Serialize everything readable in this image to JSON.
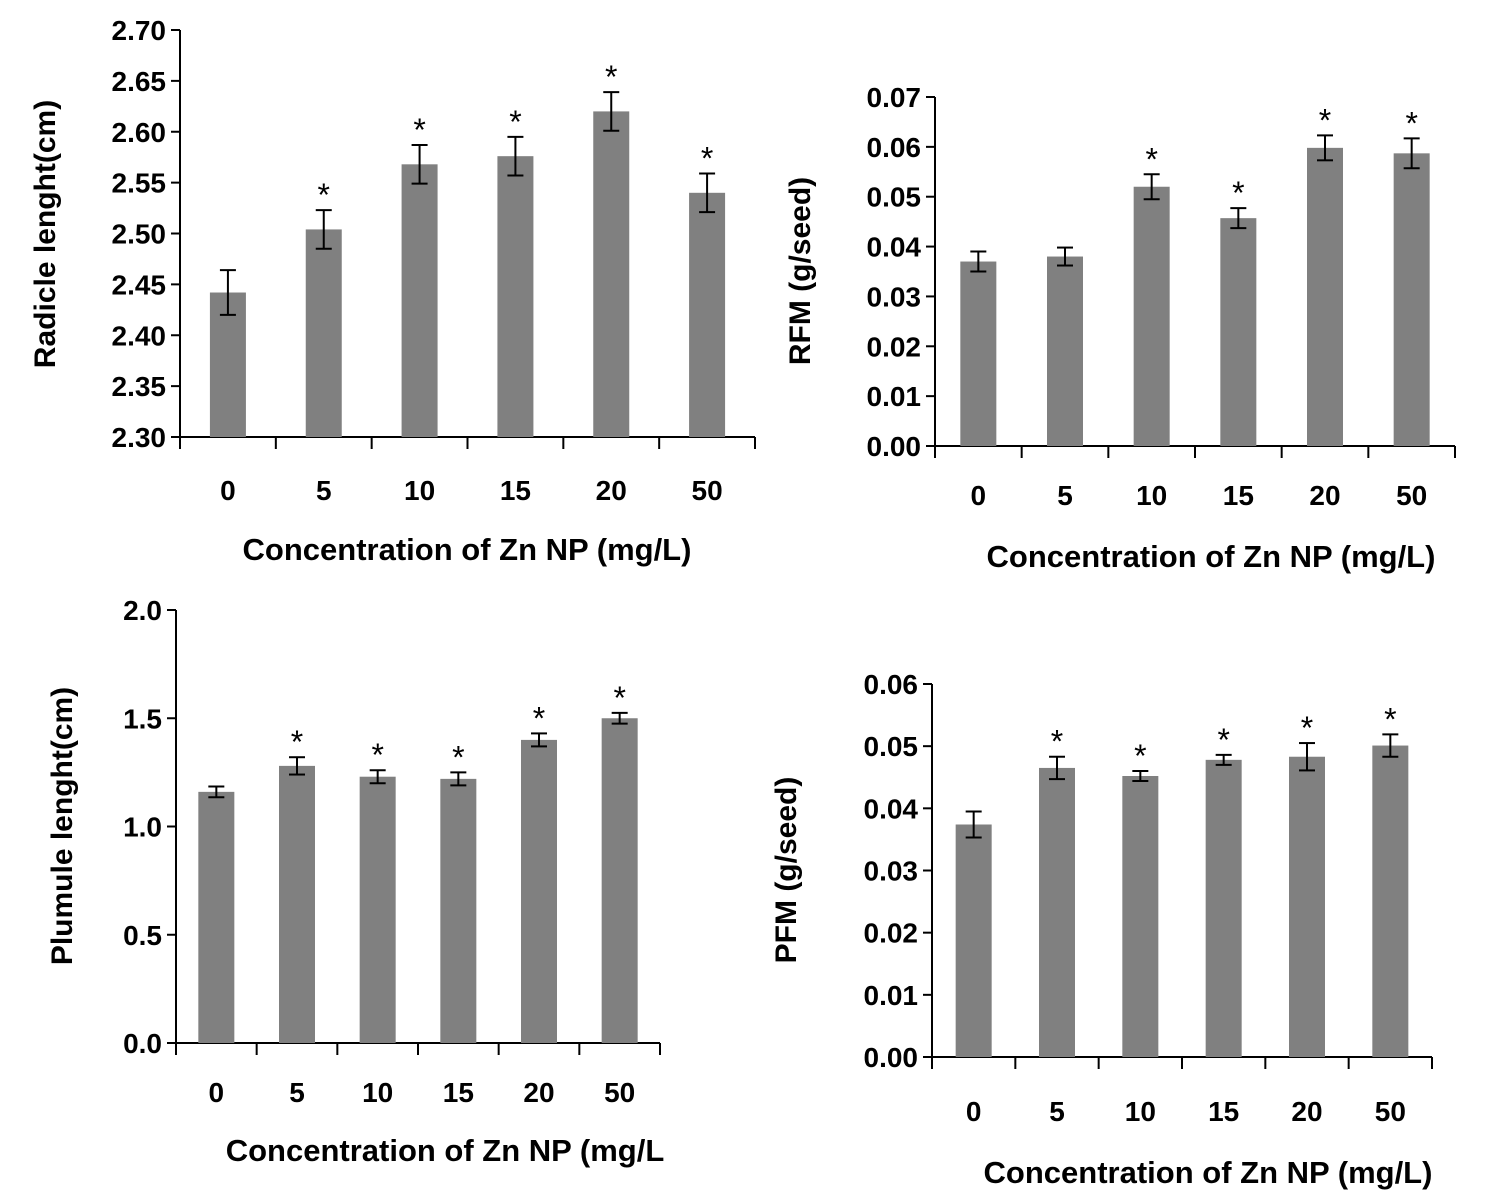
{
  "chart_data": [
    {
      "type": "bar",
      "categories": [
        "0",
        "5",
        "10",
        "15",
        "20",
        "50"
      ],
      "values": [
        2.442,
        2.504,
        2.568,
        2.576,
        2.62,
        2.54
      ],
      "errors": [
        0.022,
        0.019,
        0.019,
        0.019,
        0.019,
        0.019
      ],
      "significance": [
        "",
        "*",
        "*",
        "*",
        "*",
        "*"
      ],
      "ylabel": "Radicle lenght(cm)",
      "xlabel": "Concentration of Zn NP (mg/L)",
      "ylim": [
        2.3,
        2.7
      ],
      "yticks": [
        "2.30",
        "2.35",
        "2.40",
        "2.45",
        "2.50",
        "2.55",
        "2.60",
        "2.65",
        "2.70"
      ]
    },
    {
      "type": "bar",
      "categories": [
        "0",
        "5",
        "10",
        "15",
        "20",
        "50"
      ],
      "values": [
        0.037,
        0.038,
        0.052,
        0.0457,
        0.0598,
        0.0587
      ],
      "errors": [
        0.002,
        0.0018,
        0.0025,
        0.002,
        0.0025,
        0.003
      ],
      "significance": [
        "",
        "",
        "*",
        "*",
        "*",
        "*"
      ],
      "ylabel": "RFM (g/seed)",
      "xlabel": "Concentration of Zn NP (mg/L)",
      "ylim": [
        0,
        0.07
      ],
      "yticks": [
        "0.00",
        "0.01",
        "0.02",
        "0.03",
        "0.04",
        "0.05",
        "0.06",
        "0.07"
      ]
    },
    {
      "type": "bar",
      "categories": [
        "0",
        "5",
        "10",
        "15",
        "20",
        "50"
      ],
      "values": [
        1.16,
        1.28,
        1.23,
        1.22,
        1.4,
        1.5
      ],
      "errors": [
        0.025,
        0.04,
        0.03,
        0.03,
        0.03,
        0.025
      ],
      "significance": [
        "",
        "*",
        "*",
        "*",
        "*",
        "*"
      ],
      "ylabel": "Plumule lenght(cm)",
      "xlabel": "Concentration of Zn NP (mg/L",
      "ylim": [
        0,
        2.0
      ],
      "yticks": [
        "0.0",
        "0.5",
        "1.0",
        "1.5",
        "2.0"
      ]
    },
    {
      "type": "bar",
      "categories": [
        "0",
        "5",
        "10",
        "15",
        "20",
        "50"
      ],
      "values": [
        0.0374,
        0.0465,
        0.0452,
        0.0478,
        0.0483,
        0.0501
      ],
      "errors": [
        0.0021,
        0.0018,
        0.0008,
        0.0008,
        0.0022,
        0.0018
      ],
      "significance": [
        "",
        "*",
        "*",
        "*",
        "*",
        "*"
      ],
      "ylabel": "PFM (g/seed)",
      "xlabel": "Concentration of Zn NP (mg/L)",
      "ylim": [
        0,
        0.06
      ],
      "yticks": [
        "0.00",
        "0.01",
        "0.02",
        "0.03",
        "0.04",
        "0.05",
        "0.06"
      ]
    }
  ]
}
